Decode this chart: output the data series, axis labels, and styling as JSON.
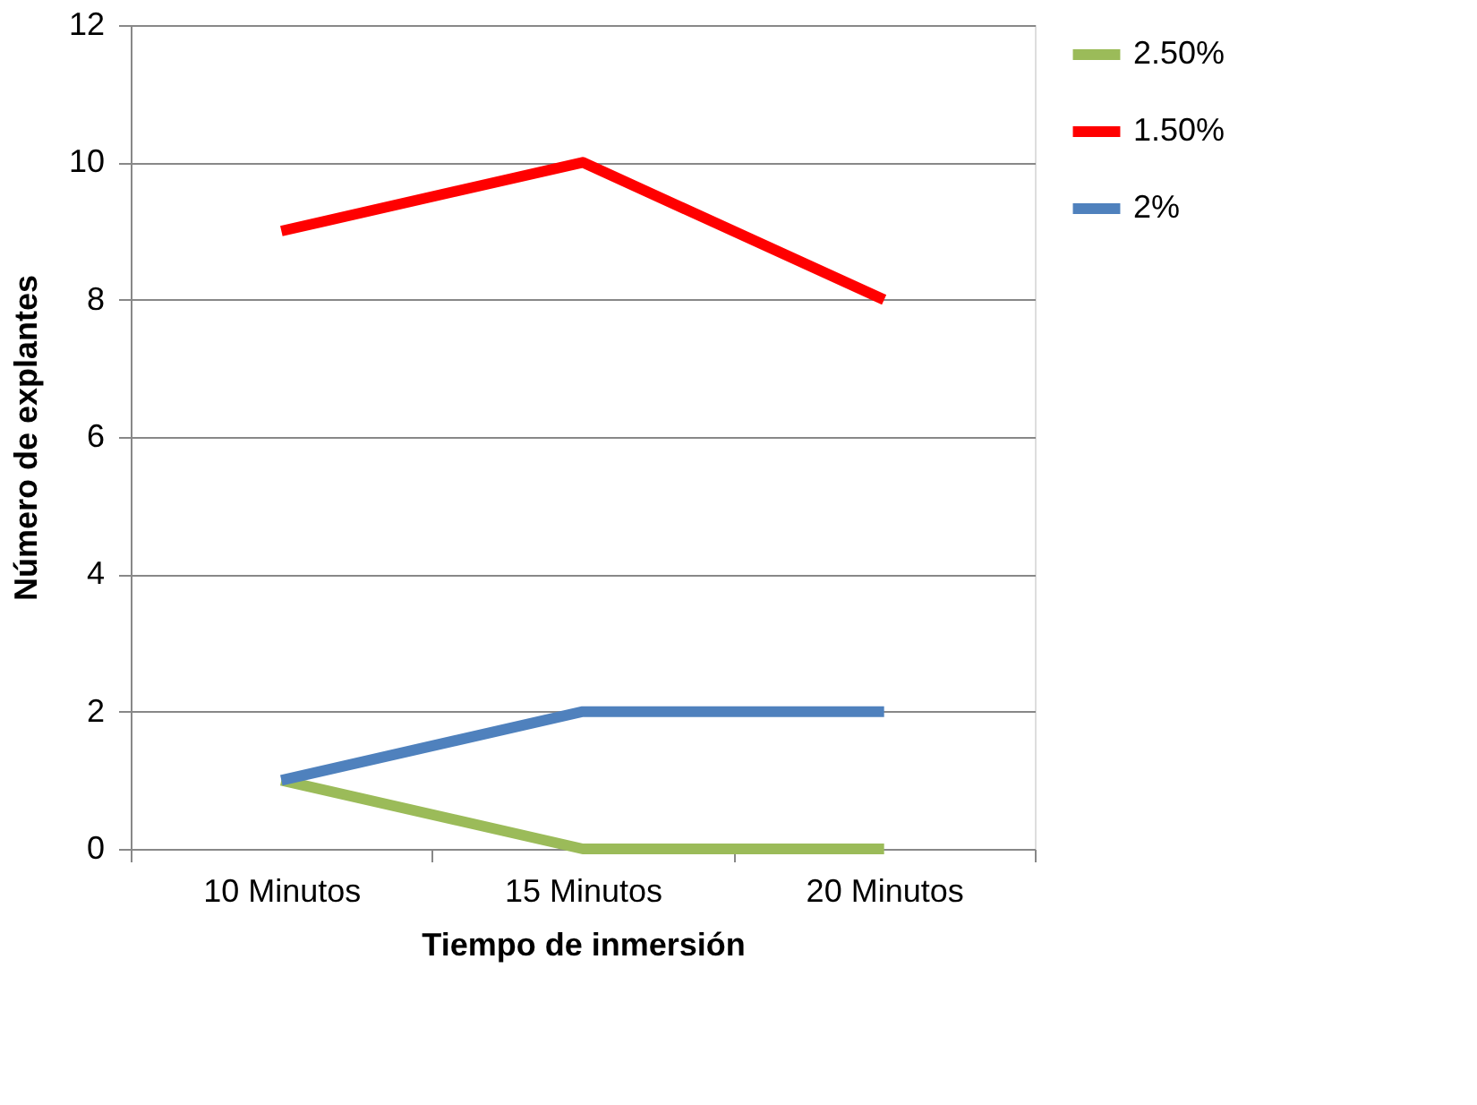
{
  "chart_data": {
    "type": "line",
    "xlabel": "Tiempo de inmersión",
    "ylabel": "Número de explantes",
    "categories": [
      "10 Minutos",
      "15 Minutos",
      "20 Minutos"
    ],
    "series": [
      {
        "name": "2.50%",
        "color": "#9bbb59",
        "values": [
          1,
          0,
          0
        ]
      },
      {
        "name": "1.50%",
        "color": "#ff0000",
        "values": [
          9,
          10,
          8
        ]
      },
      {
        "name": "2%",
        "color": "#4f81bd",
        "values": [
          1,
          2,
          2
        ]
      }
    ],
    "ylim": [
      0,
      12
    ],
    "yticks": [
      0,
      2,
      4,
      6,
      8,
      10,
      12
    ],
    "grid": "y",
    "legend": "right",
    "marker": "none",
    "line_style": "solid"
  }
}
